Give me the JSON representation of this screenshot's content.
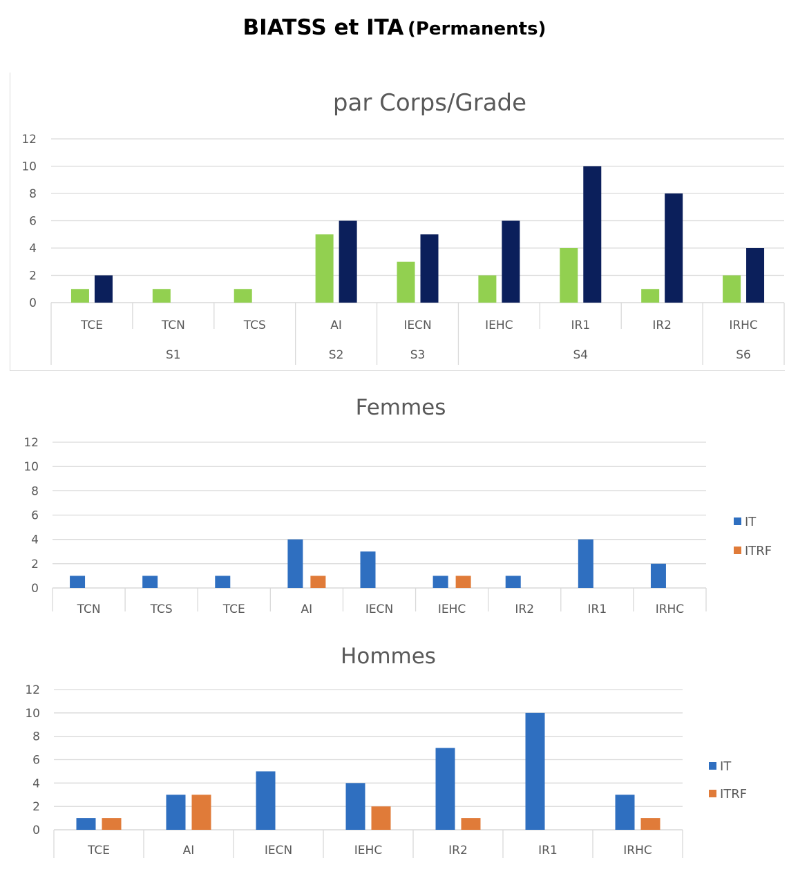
{
  "page": {
    "title": "BIATSS et ITA",
    "title_suffix": "(Permanents)"
  },
  "chart_data": [
    {
      "type": "bar",
      "title": "par Corps/Grade",
      "categories": [
        "TCE",
        "TCN",
        "TCS",
        "AI",
        "IECN",
        "IEHC",
        "IR1",
        "IR2",
        "IRHC"
      ],
      "groups": [
        {
          "label": "S1",
          "span": [
            "TCE",
            "TCS"
          ]
        },
        {
          "label": "S2",
          "span": [
            "AI",
            "AI"
          ]
        },
        {
          "label": "S3",
          "span": [
            "IECN",
            "IECN"
          ]
        },
        {
          "label": "S4",
          "span": [
            "IEHC",
            "IR2"
          ]
        },
        {
          "label": "S6",
          "span": [
            "IRHC",
            "IRHC"
          ]
        }
      ],
      "series": [
        {
          "values": [
            1,
            1,
            1,
            5,
            3,
            2,
            4,
            1,
            2
          ],
          "color": "#92d050"
        },
        {
          "values": [
            2,
            0,
            0,
            6,
            5,
            6,
            10,
            8,
            4
          ],
          "color": "#0b1f5b"
        }
      ],
      "ylim": [
        0,
        12
      ],
      "yticks": [
        0,
        2,
        4,
        6,
        8,
        10,
        12
      ],
      "grid": true,
      "legend": "none"
    },
    {
      "type": "bar",
      "title": "Femmes",
      "categories": [
        "TCN",
        "TCS",
        "TCE",
        "AI",
        "IECN",
        "IEHC",
        "IR2",
        "IR1",
        "IRHC"
      ],
      "series": [
        {
          "name": "IT",
          "values": [
            1,
            1,
            1,
            4,
            3,
            1,
            1,
            4,
            2
          ],
          "color": "#2f6fc0"
        },
        {
          "name": "ITRF",
          "values": [
            0,
            0,
            0,
            1,
            0,
            1,
            0,
            0,
            0
          ],
          "color": "#e07b39"
        }
      ],
      "ylim": [
        0,
        12
      ],
      "yticks": [
        0,
        2,
        4,
        6,
        8,
        10,
        12
      ],
      "grid": true,
      "legend": "right"
    },
    {
      "type": "bar",
      "title": "Hommes",
      "categories": [
        "TCE",
        "AI",
        "IECN",
        "IEHC",
        "IR2",
        "IR1",
        "IRHC"
      ],
      "series": [
        {
          "name": "IT",
          "values": [
            1,
            3,
            5,
            4,
            7,
            10,
            3
          ],
          "color": "#2f6fc0"
        },
        {
          "name": "ITRF",
          "values": [
            1,
            3,
            0,
            2,
            1,
            0,
            1
          ],
          "color": "#e07b39"
        }
      ],
      "ylim": [
        0,
        12
      ],
      "yticks": [
        0,
        2,
        4,
        6,
        8,
        10,
        12
      ],
      "grid": true,
      "legend": "right"
    }
  ]
}
